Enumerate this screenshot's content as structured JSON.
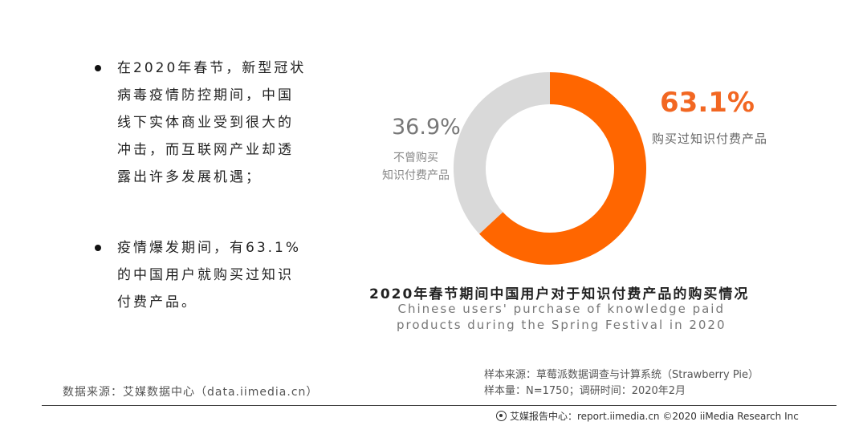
{
  "bullets": [
    {
      "lines": [
        "在2020年春节，新型冠状",
        "病毒疫情防控期间，中国",
        "线下实体商业受到很大的",
        "冲击，而互联网产业却透",
        "露出许多发展机遇；"
      ]
    },
    {
      "lines": [
        "疫情爆发期间，有63.1%",
        "的中国用户就购买过知识",
        "付费产品。"
      ]
    }
  ],
  "chart_data": {
    "type": "pie",
    "variant": "donut",
    "title": "2020年春节期间中国用户对于知识付费产品的购买情况",
    "subtitle_lines": [
      "Chinese users' purchase of knowledge paid",
      "products during the Spring Festival in 2020"
    ],
    "slices": [
      {
        "value": 63.1,
        "display": "63.1%",
        "label": "购买过知识付费产品",
        "color": "#ff6600"
      },
      {
        "value": 36.9,
        "display": "36.9%",
        "label_lines": [
          "不曾购买",
          "知识付费产品"
        ],
        "color": "#d9d9d9"
      }
    ]
  },
  "source": {
    "left": "数据来源：艾媒数据中心（data.iimedia.cn）",
    "right_lines": [
      "样本来源：草莓派数据调查与计算系统（Strawberry Pie）",
      "样本量：N=1750；调研时间：2020年2月"
    ]
  },
  "footer": {
    "text": "艾媒报告中心：report.iimedia.cn ©2020 iiMedia Research Inc"
  }
}
